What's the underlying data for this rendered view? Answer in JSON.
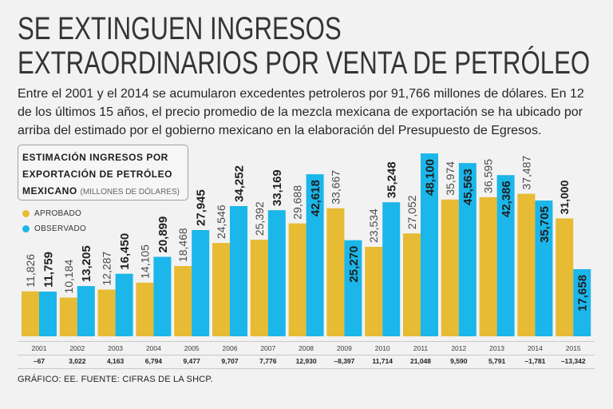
{
  "headline": {
    "line1": "SE EXTINGUEN INGRESOS",
    "line2": "EXTRAORDINARIOS POR VENTA DE PETRÓLEO"
  },
  "intro": [
    "Entre el 2001 y el 2014 se acumularon excedentes petroleros por 91,766 millones de dólares. En 12",
    "de los últimos 15 años, el precio promedio de la mezcla mexicana de exportación se ha ubicado por",
    "arriba del estimado por el gobierno mexicano en la elaboración del Presupuesto de Egresos."
  ],
  "chart_data": {
    "type": "bar",
    "title_lines": [
      "ESTIMACIÓN INGRESOS POR",
      "EXPORTACIÓN DE PETRÓLEO",
      "MEXICANO"
    ],
    "units": "(MILLONES DE DÓLARES)",
    "categories": [
      "2001",
      "2002",
      "2003",
      "2004",
      "2005",
      "2006",
      "2007",
      "2008",
      "2009",
      "2010",
      "2011",
      "2012",
      "2013",
      "2014",
      "2015"
    ],
    "series": [
      {
        "name": "APROBADO",
        "color": "#e7bb33",
        "values": [
          11826,
          10184,
          12287,
          14105,
          18468,
          24546,
          25392,
          29688,
          33667,
          23534,
          27052,
          35974,
          36595,
          37487,
          31000
        ]
      },
      {
        "name": "OBSERVADO",
        "color": "#1bb6ea",
        "values": [
          11759,
          13205,
          16450,
          20899,
          27945,
          34252,
          33169,
          42618,
          25270,
          35248,
          48100,
          45563,
          42386,
          35705,
          17658
        ]
      }
    ],
    "differences": [
      "–67",
      "3,022",
      "4,163",
      "6,794",
      "9,477",
      "9,707",
      "7,776",
      "12,930",
      "–8,397",
      "11,714",
      "21,048",
      "9,590",
      "5,791",
      "–1,781",
      "–13,342"
    ],
    "ylim": [
      0,
      50000
    ],
    "legend": "top-left",
    "grid": false
  },
  "footer": "GRÁFICO: EE. FUENTE: CIFRAS DE LA SHCP."
}
